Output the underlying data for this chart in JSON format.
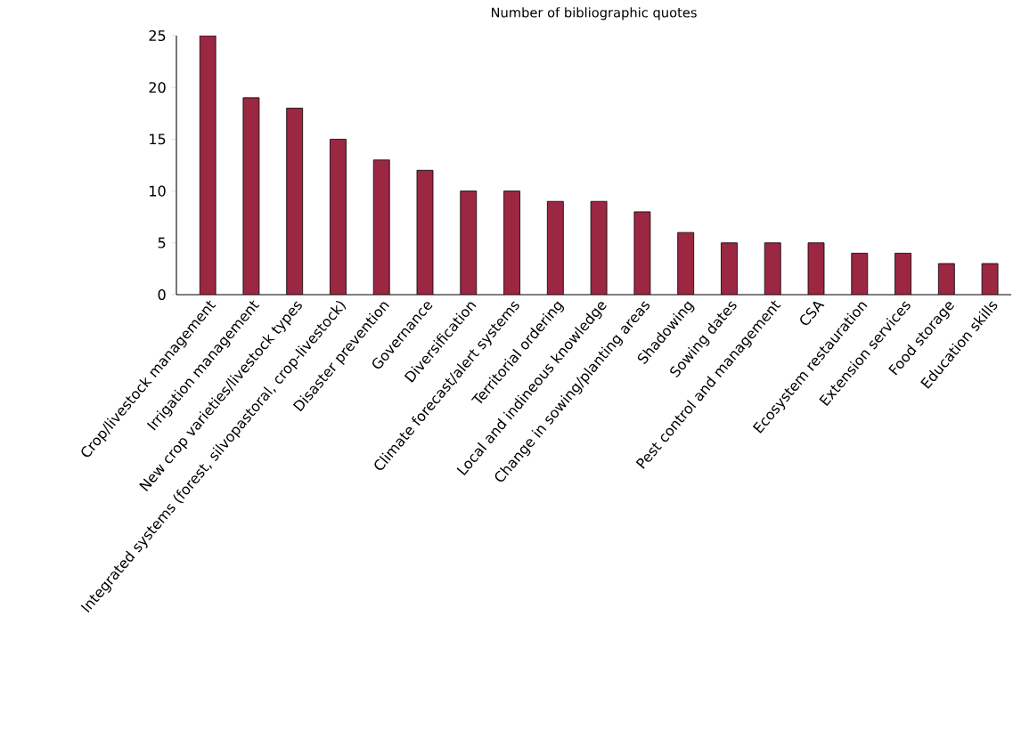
{
  "chart_data": {
    "type": "bar",
    "title": "Number of bibliographic quotes",
    "categories": [
      "Crop/livestock management",
      "Irrigation management",
      "New crop varieties/livestock types",
      "Integrated systems (forest, silvopastoral, crop-livestock)",
      "Disaster prevention",
      "Governance",
      "Diversification",
      "Climate forecast/alert systems",
      "Territorial ordering",
      "Local and indineous knowledge",
      "Change in sowing/planting areas",
      "Shadowing",
      "Sowing dates",
      "Pest control and management",
      "CSA",
      "Ecosystem restauration",
      "Extension services",
      "Food storage",
      "Education skills"
    ],
    "values": [
      25,
      19,
      18,
      15,
      13,
      12,
      10,
      10,
      9,
      9,
      8,
      6,
      5,
      5,
      5,
      4,
      4,
      3,
      3
    ],
    "color": "#9b2743",
    "ylim": [
      0,
      25
    ],
    "yticks": [
      0,
      5,
      10,
      15,
      20,
      25
    ],
    "grid": false
  }
}
